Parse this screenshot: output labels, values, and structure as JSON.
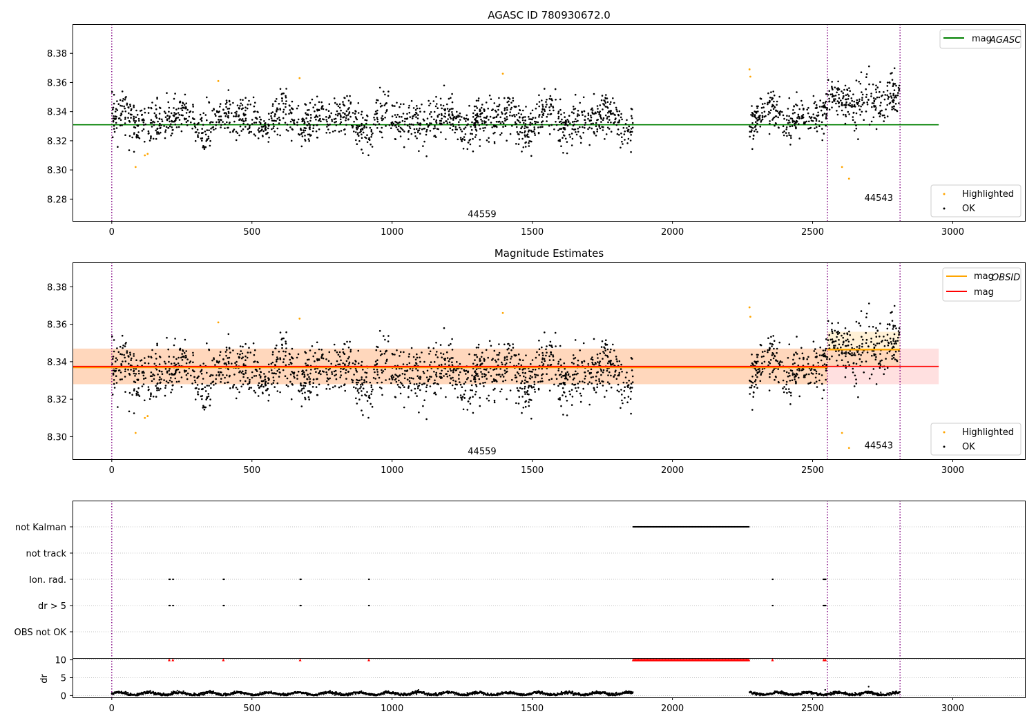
{
  "chart_data": [
    {
      "type": "scatter",
      "title": "AGASC ID 780930672.0",
      "xlim": [
        -140,
        3260
      ],
      "ylim": [
        8.265,
        8.4
      ],
      "xticks": [
        0,
        500,
        1000,
        1500,
        2000,
        2500,
        3000
      ],
      "yticks": [
        8.28,
        8.3,
        8.32,
        8.34,
        8.36,
        8.38
      ],
      "grid": false,
      "legend_top": {
        "placement": "top-right",
        "entries": [
          {
            "label": "mag",
            "subscript": "AGASC",
            "color": "#008000"
          }
        ]
      },
      "legend_bottom": {
        "placement": "bottom-right",
        "entries": [
          {
            "label": "Highlighted",
            "color": "#ffa500"
          },
          {
            "label": "OK",
            "color": "#000000"
          }
        ]
      },
      "hlines": [
        {
          "name": "mag_AGASC",
          "y": 8.331,
          "x": [
            -140,
            2950
          ],
          "color": "#008000"
        }
      ],
      "vlines": [
        0,
        2553,
        2812
      ],
      "observations": [
        {
          "label": "44559",
          "x_range": [
            0,
            1860
          ],
          "base": 8.334,
          "amp": 0.008,
          "noise": 0.007
        },
        {
          "label": "",
          "x_range": [
            2275,
            2553
          ],
          "base": 8.336,
          "amp": 0.006,
          "noise": 0.007
        },
        {
          "label": "44543",
          "x_range": [
            2553,
            2812
          ],
          "base": 8.346,
          "amp": 0.005,
          "noise": 0.008
        }
      ],
      "obs_labels": [
        {
          "text": "44559",
          "x": 1270,
          "y": 8.27
        },
        {
          "text": "44543",
          "x": 2685,
          "y": 8.281
        }
      ],
      "highlighted_points": [
        [
          85,
          8.302
        ],
        [
          118,
          8.31
        ],
        [
          128,
          8.311
        ],
        [
          380,
          8.361
        ],
        [
          670,
          8.363
        ],
        [
          1395,
          8.366
        ],
        [
          2275,
          8.369
        ],
        [
          2278,
          8.364
        ],
        [
          2605,
          8.302
        ],
        [
          2630,
          8.294
        ]
      ]
    },
    {
      "type": "scatter",
      "title": "Magnitude Estimates",
      "xlim": [
        -140,
        3260
      ],
      "ylim": [
        8.288,
        8.393
      ],
      "xticks": [
        0,
        500,
        1000,
        1500,
        2000,
        2500,
        3000
      ],
      "yticks": [
        8.3,
        8.32,
        8.34,
        8.36,
        8.38
      ],
      "grid": false,
      "legend_top": {
        "placement": "top-right",
        "entries": [
          {
            "label": "mag",
            "subscript": "OBSID",
            "color": "#ffa500"
          },
          {
            "label": "mag",
            "subscript": "",
            "color": "#ff0000"
          }
        ]
      },
      "legend_bottom": {
        "placement": "bottom-right",
        "entries": [
          {
            "label": "Highlighted",
            "color": "#ffa500"
          },
          {
            "label": "OK",
            "color": "#000000"
          }
        ]
      },
      "mag": {
        "y": 8.3375,
        "band": [
          8.328,
          8.347
        ],
        "x": [
          -140,
          2950
        ],
        "color": "#ff0000"
      },
      "mag_obsid": [
        {
          "x": [
            -140,
            2553
          ],
          "y": 8.337,
          "band": [
            8.328,
            8.347
          ]
        },
        {
          "x": [
            2553,
            2812
          ],
          "y": 8.3465,
          "band": [
            8.337,
            8.356
          ]
        }
      ],
      "vlines": [
        0,
        2553,
        2812
      ],
      "obs_labels": [
        {
          "text": "44559",
          "x": 1270,
          "y": 8.2925
        },
        {
          "text": "44543",
          "x": 2685,
          "y": 8.2955
        }
      ]
    },
    {
      "type": "scatter",
      "title": "",
      "xlim": [
        -140,
        3260
      ],
      "xticks": [
        0,
        500,
        1000,
        1500,
        2000,
        2500,
        3000
      ],
      "flag_labels": [
        "not Kalman",
        "not track",
        "Ion. rad.",
        "dr > 5",
        "OBS not OK"
      ],
      "flags": {
        "not Kalman": [
          [
            1860,
            2275
          ]
        ],
        "not track": [],
        "Ion. rad.": [
          [
            205,
            208
          ],
          [
            218,
            220
          ],
          [
            398,
            401
          ],
          [
            672,
            675
          ],
          [
            917,
            919
          ],
          [
            2357,
            2359
          ],
          [
            2538,
            2548
          ]
        ],
        "dr > 5": [
          [
            205,
            208
          ],
          [
            218,
            220
          ],
          [
            398,
            401
          ],
          [
            672,
            675
          ],
          [
            917,
            919
          ],
          [
            2357,
            2359
          ],
          [
            2538,
            2548
          ]
        ],
        "OBS not OK": []
      },
      "dr": {
        "ylabel": "dr",
        "ylim": [
          -0.5,
          10.5
        ],
        "yticks": [
          0,
          5,
          10
        ],
        "clipped_points": [
          [
            205,
            10
          ],
          [
            218,
            10
          ],
          [
            398,
            10
          ],
          [
            672,
            10
          ],
          [
            917,
            10
          ],
          [
            2357,
            10
          ],
          [
            2540,
            10
          ],
          [
            2546,
            10
          ]
        ],
        "clipped_range": [
          1860,
          2275
        ],
        "segments": [
          [
            0,
            1860
          ],
          [
            2275,
            2812
          ]
        ],
        "outliers": [
          [
            2700,
            2.5
          ],
          [
            2545,
            1.6
          ]
        ]
      },
      "vlines": [
        0,
        2553,
        2812
      ]
    }
  ]
}
